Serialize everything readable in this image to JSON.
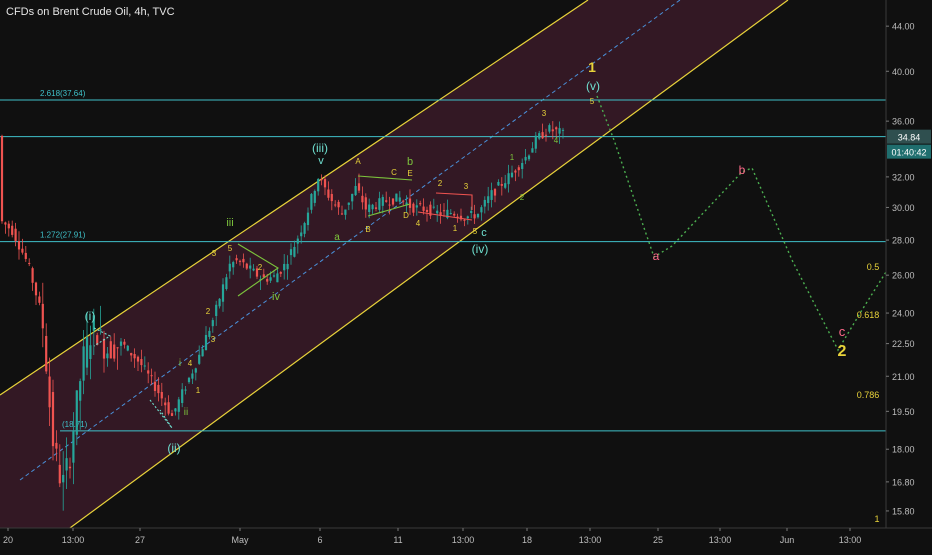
{
  "header": {
    "title": "CFDs on Brent Crude Oil, 4h, TVC"
  },
  "colors": {
    "background": "#101010",
    "channel_line": "#e8d33a",
    "channel_fill": "#3a1a28",
    "midline": "#4a90d9",
    "level_line": "#3fc1c9",
    "candle_up": "#26a69a",
    "candle_down": "#ef5350",
    "projection": "#4caf50",
    "wave_green": "#7cc33c",
    "wave_yellow": "#e8d33a",
    "wave_cyan": "#6fe0d0",
    "wave_pink": "#ff6b8a",
    "price_tag": "#2f4f4f",
    "timer_tag": "#1f6e6e"
  },
  "chart_data": {
    "type": "candlestick",
    "title": "CFDs on Brent Crude Oil, 4h, TVC",
    "x_axis": {
      "tick_labels": [
        "20",
        "13:00",
        "27",
        "May",
        "6",
        "11",
        "13:00",
        "18",
        "13:00",
        "25",
        "13:00",
        "Jun",
        "13:00"
      ]
    },
    "y_axis": {
      "tick_labels": [
        "44.00",
        "40.00",
        "36.00",
        "32.00",
        "30.00",
        "28.00",
        "26.00",
        "24.00",
        "22.50",
        "21.00",
        "19.50",
        "18.00",
        "16.80",
        "15.80"
      ],
      "scale": "log",
      "range": [
        15.5,
        46.5
      ]
    },
    "current_price": "34.84",
    "countdown": "01:40:42",
    "fib_levels": [
      {
        "label": "2.618(37.64)",
        "value": 37.64
      },
      {
        "label": "1.272(27.91)",
        "value": 27.91
      },
      {
        "label": "(18.71)",
        "value": 18.71
      }
    ],
    "current_level": 34.84,
    "wave_labels": {
      "green": [
        "iii",
        "iv",
        "i",
        "ii",
        "b",
        "a"
      ],
      "yellow": [
        "1",
        "2",
        "5",
        "A",
        "B",
        "C",
        "D",
        "E",
        "2",
        "3",
        "4",
        "1",
        "1",
        "2",
        "3",
        "4",
        "5",
        "1",
        "2",
        "3",
        "4",
        "5",
        "3",
        "2",
        "0.5",
        "0.618",
        "0.786",
        "1"
      ],
      "cyan": [
        "(i)",
        "(ii)",
        "(iii)",
        "v",
        "(iv)",
        "c",
        "(v)"
      ],
      "pink": [
        "a",
        "b",
        "c"
      ]
    }
  }
}
